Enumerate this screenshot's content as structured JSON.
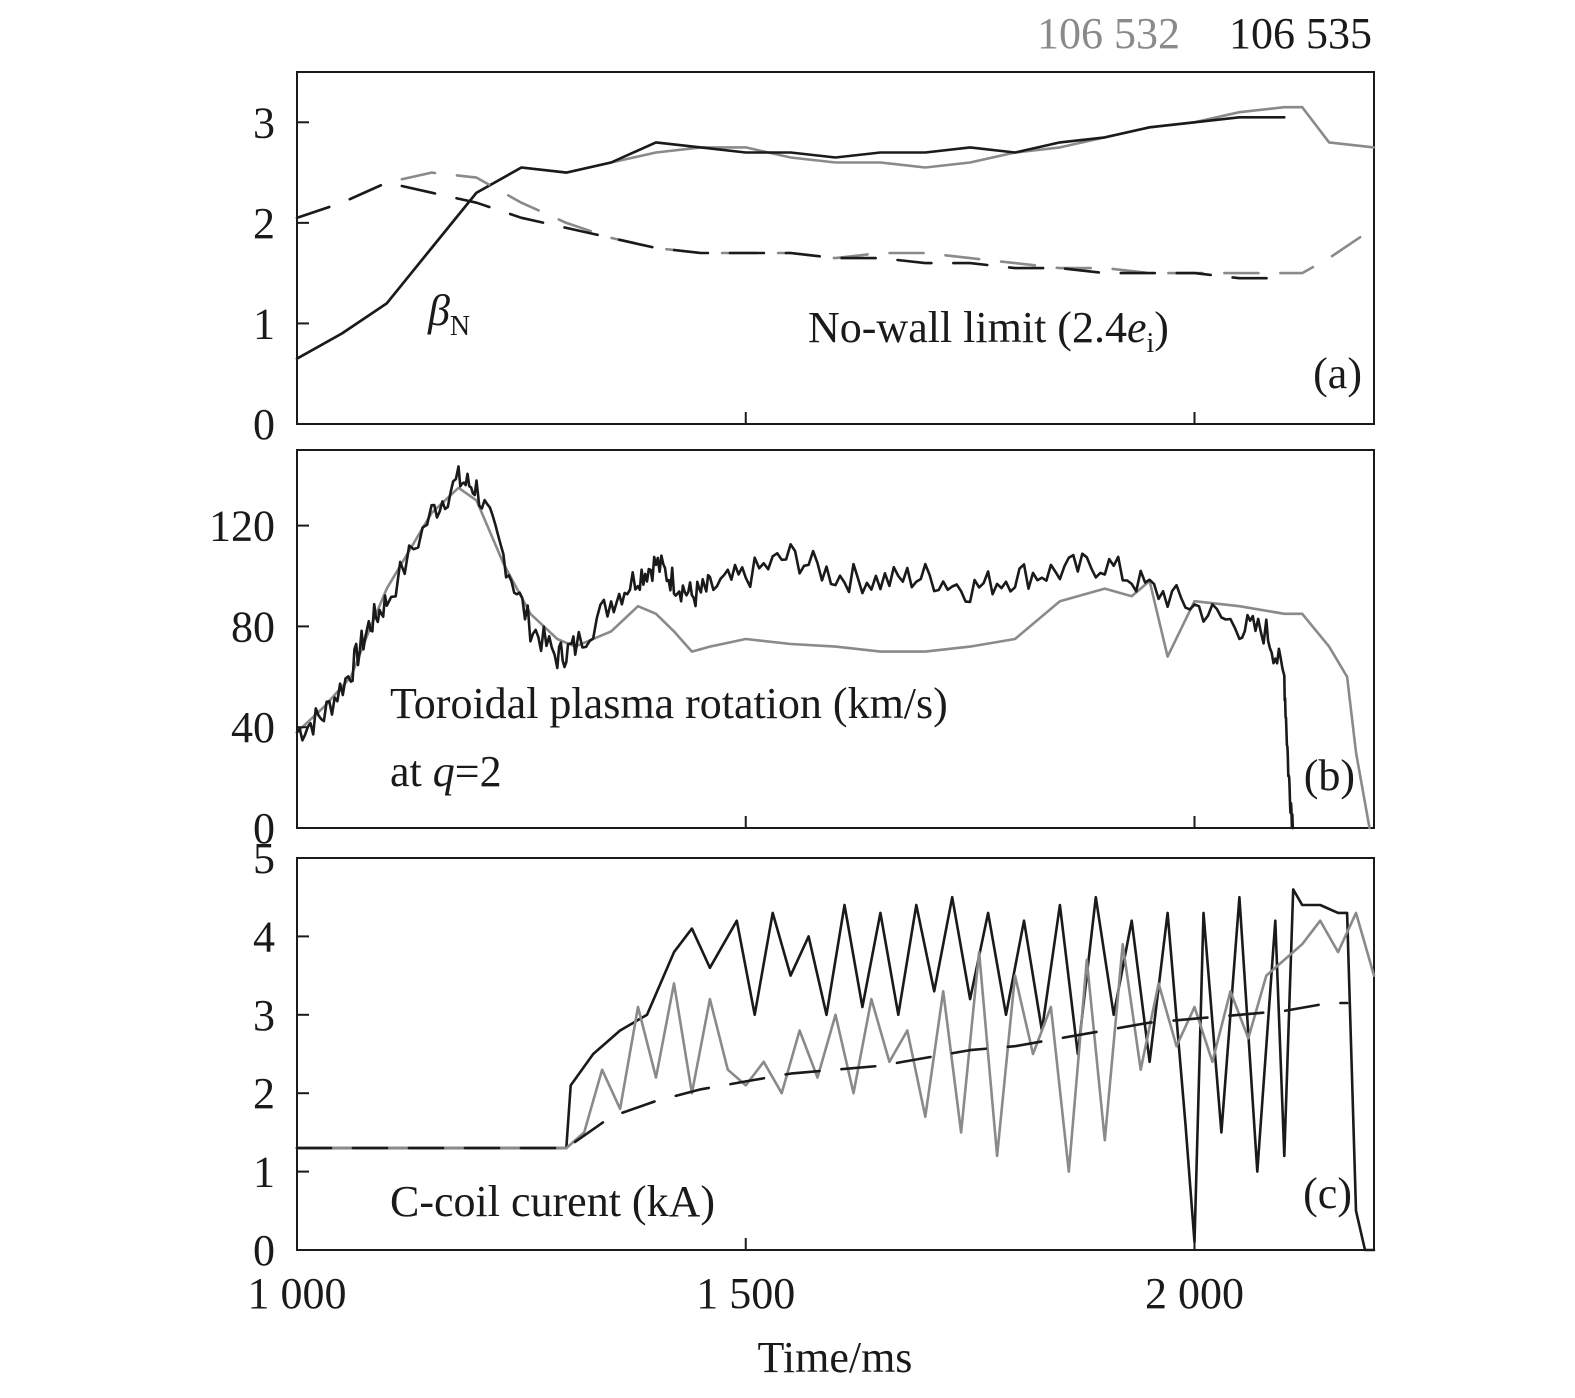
{
  "legend": {
    "shot_a": "106 532",
    "shot_b": "106 535",
    "shot_a_color": "#8a8a8a",
    "shot_b_color": "#1a1a1a"
  },
  "xlabel": "Time/ms",
  "x_ticks": [
    "1 000",
    "1 500",
    "2 000"
  ],
  "panels": {
    "a": {
      "tag": "(a)",
      "y_ticks": [
        "0",
        "1",
        "2",
        "3"
      ],
      "beta_label": "β",
      "beta_sub": "N",
      "limit_label_pre": "No-wall limit (2.4",
      "limit_label_e": "e",
      "limit_label_sub": "i",
      "limit_label_post": ")"
    },
    "b": {
      "tag": "(b)",
      "y_ticks": [
        "0",
        "40",
        "80",
        "120"
      ],
      "label_line1": "Toroidal plasma rotation (km/s)",
      "label_line2_pre": "at ",
      "label_line2_q": "q",
      "label_line2_post": "=2"
    },
    "c": {
      "tag": "(c)",
      "y_ticks": [
        "0",
        "1",
        "2",
        "3",
        "4",
        "5"
      ],
      "label": "C-coil curent (kA)"
    }
  },
  "chart_data": [
    {
      "type": "line",
      "panel": "a",
      "xlim": [
        1000,
        2200
      ],
      "ylim": [
        0,
        3.5
      ],
      "ylabel": "",
      "series": [
        {
          "shot": "106 532",
          "style": "solid",
          "color": "#8a8a8a",
          "x": [
            1000,
            1050,
            1100,
            1150,
            1200,
            1250,
            1300,
            1350,
            1400,
            1450,
            1500,
            1550,
            1600,
            1650,
            1700,
            1750,
            1800,
            1850,
            1900,
            1950,
            2000,
            2050,
            2100,
            2120,
            2150,
            2200
          ],
          "y": [
            0.65,
            0.9,
            1.2,
            1.75,
            2.3,
            2.55,
            2.5,
            2.6,
            2.7,
            2.75,
            2.75,
            2.65,
            2.6,
            2.6,
            2.55,
            2.6,
            2.7,
            2.75,
            2.85,
            2.95,
            3.0,
            3.1,
            3.15,
            3.15,
            2.8,
            2.75
          ]
        },
        {
          "shot": "106 535",
          "style": "solid",
          "color": "#1a1a1a",
          "x": [
            1000,
            1050,
            1100,
            1150,
            1200,
            1250,
            1300,
            1350,
            1400,
            1450,
            1500,
            1550,
            1600,
            1650,
            1700,
            1750,
            1800,
            1850,
            1900,
            1950,
            2000,
            2050,
            2100
          ],
          "y": [
            0.65,
            0.9,
            1.2,
            1.75,
            2.3,
            2.55,
            2.5,
            2.6,
            2.8,
            2.75,
            2.7,
            2.7,
            2.65,
            2.7,
            2.7,
            2.75,
            2.7,
            2.8,
            2.85,
            2.95,
            3.0,
            3.05,
            3.05
          ]
        },
        {
          "shot": "106 532",
          "style": "dashed",
          "color": "#8a8a8a",
          "x": [
            1000,
            1050,
            1100,
            1150,
            1200,
            1250,
            1300,
            1350,
            1400,
            1450,
            1500,
            1550,
            1600,
            1650,
            1700,
            1750,
            1800,
            1850,
            1900,
            1950,
            2000,
            2050,
            2100,
            2120,
            2150,
            2200
          ],
          "y": [
            2.05,
            2.2,
            2.4,
            2.5,
            2.45,
            2.2,
            2.0,
            1.85,
            1.75,
            1.7,
            1.7,
            1.7,
            1.65,
            1.7,
            1.7,
            1.65,
            1.6,
            1.55,
            1.55,
            1.5,
            1.5,
            1.5,
            1.5,
            1.5,
            1.65,
            1.95
          ]
        },
        {
          "shot": "106 535",
          "style": "dashed",
          "color": "#1a1a1a",
          "x": [
            1000,
            1050,
            1100,
            1150,
            1200,
            1250,
            1300,
            1350,
            1400,
            1450,
            1500,
            1550,
            1600,
            1650,
            1700,
            1750,
            1800,
            1850,
            1900,
            1950,
            2000,
            2050,
            2100
          ],
          "y": [
            2.05,
            2.2,
            2.4,
            2.3,
            2.2,
            2.05,
            1.95,
            1.85,
            1.75,
            1.7,
            1.7,
            1.7,
            1.65,
            1.65,
            1.6,
            1.6,
            1.55,
            1.55,
            1.5,
            1.5,
            1.5,
            1.45,
            1.45
          ]
        }
      ]
    },
    {
      "type": "line",
      "panel": "b",
      "xlim": [
        1000,
        2200
      ],
      "ylim": [
        0,
        150
      ],
      "ylabel": "",
      "series": [
        {
          "shot": "106 532",
          "style": "solid",
          "color": "#8a8a8a",
          "x": [
            1000,
            1030,
            1060,
            1080,
            1100,
            1150,
            1180,
            1200,
            1230,
            1260,
            1290,
            1310,
            1350,
            1380,
            1400,
            1420,
            1440,
            1460,
            1500,
            1550,
            1600,
            1650,
            1700,
            1750,
            1800,
            1850,
            1900,
            1930,
            1950,
            1970,
            2000,
            2050,
            2100,
            2120,
            2150,
            2170,
            2180,
            2195
          ],
          "y": [
            38,
            48,
            60,
            78,
            95,
            125,
            135,
            130,
            105,
            85,
            75,
            72,
            78,
            88,
            85,
            78,
            70,
            72,
            75,
            73,
            72,
            70,
            70,
            72,
            75,
            90,
            95,
            92,
            98,
            68,
            90,
            88,
            85,
            85,
            72,
            60,
            30,
            0
          ]
        },
        {
          "shot": "106 535",
          "style": "solid",
          "color": "#1a1a1a",
          "noise": 6,
          "x": [
            1000,
            1030,
            1060,
            1080,
            1100,
            1150,
            1180,
            1200,
            1230,
            1260,
            1290,
            1310,
            1350,
            1380,
            1400,
            1420,
            1440,
            1460,
            1500,
            1550,
            1600,
            1650,
            1700,
            1750,
            1800,
            1850,
            1900,
            1950,
            2000,
            2050,
            2080,
            2100,
            2105,
            2110
          ],
          "y": [
            38,
            45,
            62,
            80,
            90,
            125,
            138,
            135,
            108,
            80,
            68,
            72,
            90,
            100,
            105,
            98,
            92,
            95,
            100,
            108,
            100,
            98,
            100,
            95,
            100,
            102,
            105,
            95,
            88,
            80,
            78,
            60,
            20,
            0
          ]
        }
      ]
    },
    {
      "type": "line",
      "panel": "c",
      "xlim": [
        1000,
        2200
      ],
      "ylim": [
        0,
        5
      ],
      "ylabel": "",
      "series": [
        {
          "shot": "106 535",
          "style": "solid",
          "color": "#1a1a1a",
          "x": [
            1000,
            1100,
            1200,
            1300,
            1305,
            1330,
            1360,
            1390,
            1420,
            1440,
            1460,
            1490,
            1510,
            1530,
            1550,
            1570,
            1590,
            1610,
            1630,
            1650,
            1670,
            1690,
            1710,
            1730,
            1750,
            1770,
            1790,
            1810,
            1830,
            1850,
            1870,
            1890,
            1910,
            1930,
            1950,
            1970,
            1990,
            2000,
            2010,
            2030,
            2050,
            2070,
            2090,
            2100,
            2110,
            2120,
            2140,
            2160,
            2170,
            2180,
            2190,
            2200
          ],
          "y": [
            1.3,
            1.3,
            1.3,
            1.3,
            2.1,
            2.5,
            2.8,
            3.0,
            3.8,
            4.1,
            3.6,
            4.2,
            3.0,
            4.3,
            3.5,
            4.0,
            3.0,
            4.4,
            3.1,
            4.3,
            3.0,
            4.4,
            3.3,
            4.5,
            3.2,
            4.3,
            3.0,
            4.2,
            2.8,
            4.4,
            2.5,
            4.5,
            3.0,
            4.2,
            2.4,
            4.3,
            1.6,
            0.1,
            4.3,
            1.5,
            4.5,
            1.0,
            4.2,
            1.2,
            4.6,
            4.4,
            4.4,
            4.3,
            4.3,
            0.5,
            0.0,
            0.0
          ]
        },
        {
          "shot": "106 532",
          "style": "solid",
          "color": "#8a8a8a",
          "x": [
            1000,
            1100,
            1200,
            1300,
            1320,
            1340,
            1360,
            1380,
            1400,
            1420,
            1440,
            1460,
            1480,
            1500,
            1520,
            1540,
            1560,
            1580,
            1600,
            1620,
            1640,
            1660,
            1680,
            1700,
            1720,
            1740,
            1760,
            1780,
            1800,
            1820,
            1840,
            1860,
            1880,
            1900,
            1920,
            1940,
            1960,
            1980,
            2000,
            2020,
            2040,
            2060,
            2080,
            2100,
            2120,
            2140,
            2160,
            2180,
            2200
          ],
          "y": [
            1.3,
            1.3,
            1.3,
            1.3,
            1.5,
            2.3,
            1.8,
            3.1,
            2.2,
            3.4,
            2.0,
            3.2,
            2.3,
            2.1,
            2.4,
            2.0,
            2.8,
            2.2,
            3.0,
            2.0,
            3.2,
            2.4,
            2.8,
            1.7,
            3.3,
            1.5,
            3.8,
            1.2,
            3.5,
            2.5,
            3.1,
            1.0,
            3.7,
            1.4,
            3.9,
            2.3,
            3.4,
            2.6,
            3.1,
            2.4,
            3.3,
            2.7,
            3.5,
            3.7,
            3.9,
            4.2,
            3.8,
            4.3,
            3.5
          ]
        },
        {
          "shot": "106 535",
          "style": "dashed",
          "color": "#1a1a1a",
          "x": [
            1000,
            1100,
            1200,
            1300,
            1350,
            1400,
            1450,
            1500,
            1550,
            1600,
            1650,
            1700,
            1750,
            1800,
            1850,
            1900,
            1950,
            2000,
            2050,
            2100,
            2150,
            2170
          ],
          "y": [
            1.3,
            1.3,
            1.3,
            1.3,
            1.7,
            1.9,
            2.05,
            2.15,
            2.25,
            2.3,
            2.35,
            2.45,
            2.55,
            2.6,
            2.7,
            2.8,
            2.9,
            2.95,
            3.0,
            3.05,
            3.15,
            3.15
          ]
        }
      ]
    }
  ]
}
